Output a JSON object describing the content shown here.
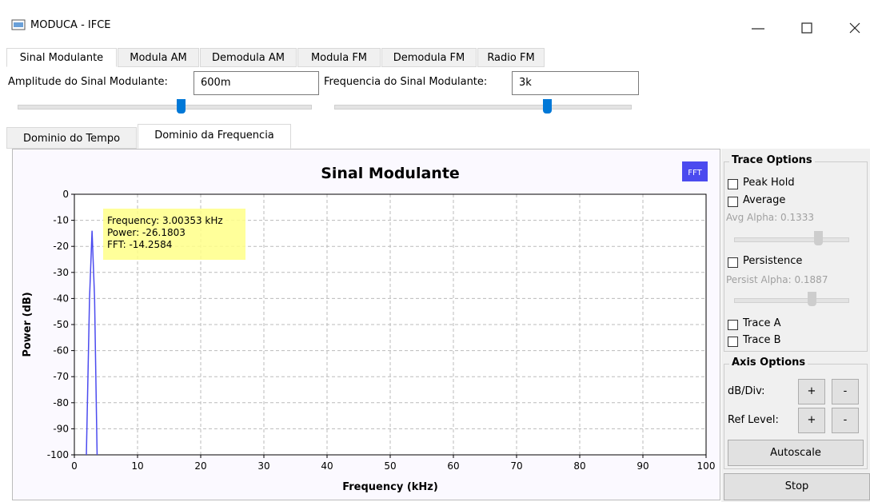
{
  "window": {
    "title": "MODUCA - IFCE"
  },
  "tabs": [
    "Sinal Modulante",
    "Modula AM",
    "Demodula AM",
    "Modula FM",
    "Demodula FM",
    "Radio FM"
  ],
  "controls": {
    "amplitude_label": "Amplitude do Sinal Modulante:",
    "amplitude_value": "600m",
    "frequency_label": "Frequencia do Sinal Modulante:",
    "frequency_value": "3k"
  },
  "subtabs": [
    "Dominio do Tempo",
    "Dominio da Frequencia"
  ],
  "chart_data": {
    "type": "line",
    "title": "Sinal Modulante",
    "x_label": "Frequency (kHz)",
    "y_label": "Power (dB)",
    "x": [
      1.9,
      2.4,
      2.8,
      3.2,
      3.6
    ],
    "series": [
      {
        "name": "FFT",
        "color": "#4b4bef",
        "values": [
          -100,
          -40,
          -14,
          -40,
          -100
        ]
      }
    ],
    "xlim": [
      0,
      100
    ],
    "xticks": [
      0,
      10,
      20,
      30,
      40,
      50,
      60,
      70,
      80,
      90,
      100
    ],
    "ylim": [
      -100,
      0
    ],
    "yticks": [
      0,
      -10,
      -20,
      -30,
      -40,
      -50,
      -60,
      -70,
      -80,
      -90,
      -100
    ],
    "grid": true,
    "annotations": [
      "Frequency: 3.00353 kHz",
      "Power: -26.1803",
      "FFT: -14.2584"
    ]
  },
  "side_panel": {
    "trace_title": "Trace Options",
    "peak_hold": "Peak Hold",
    "average": "Average",
    "avg_alpha": "Avg Alpha: 0.1333",
    "persistence": "Persistence",
    "persist_alpha": "Persist Alpha: 0.1887",
    "trace_a": "Trace A",
    "trace_b": "Trace B",
    "axis_title": "Axis Options",
    "db_div": "dB/Div:",
    "ref_level": "Ref Level:",
    "plus": "+",
    "minus": "-",
    "autoscale": "Autoscale",
    "stop": "Stop"
  }
}
